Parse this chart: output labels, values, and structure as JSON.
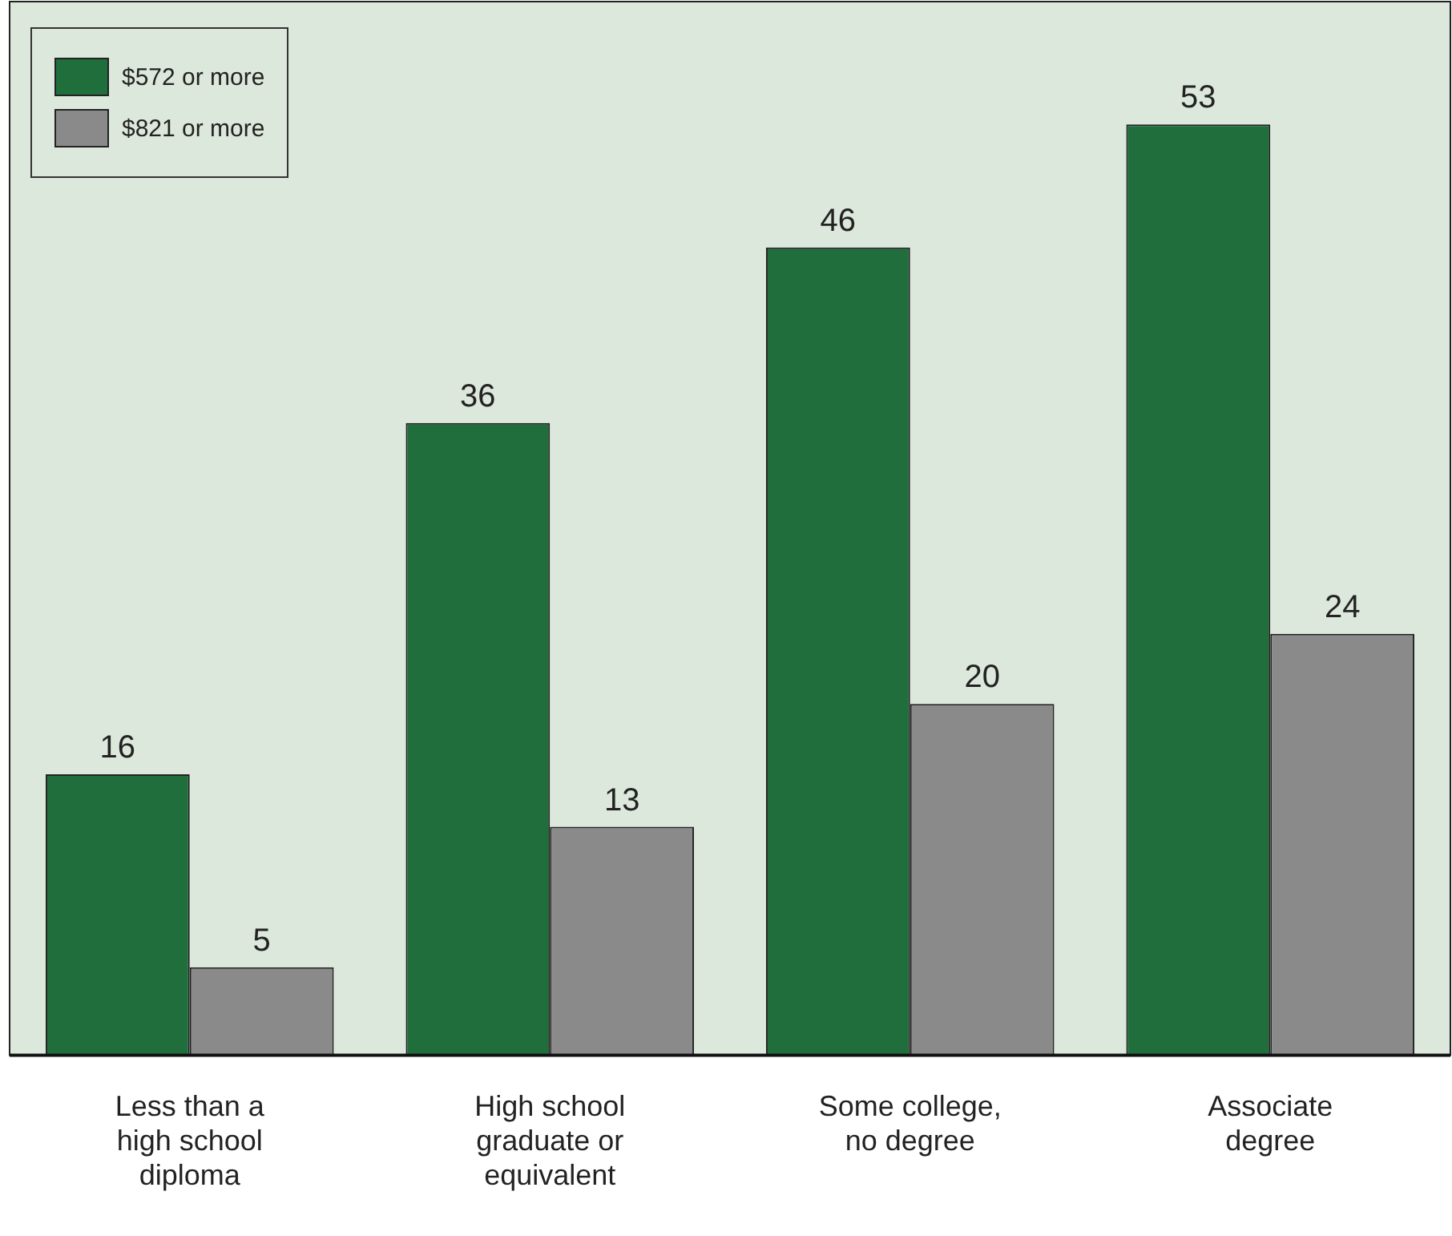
{
  "chart_data": {
    "type": "bar",
    "categories": [
      "Less than a high school diploma",
      "High school graduate or equivalent",
      "Some college, no degree",
      "Associate degree"
    ],
    "series": [
      {
        "name": "$572 or more",
        "color": "#1f6e3c",
        "values": [
          16,
          36,
          46,
          53
        ]
      },
      {
        "name": "$821 or more",
        "color": "#8a8a8a",
        "values": [
          5,
          13,
          20,
          24
        ]
      }
    ],
    "ylim": [
      0,
      60
    ],
    "data_labels": true,
    "legend": "top left",
    "grid": false,
    "tick_labels": "x"
  }
}
